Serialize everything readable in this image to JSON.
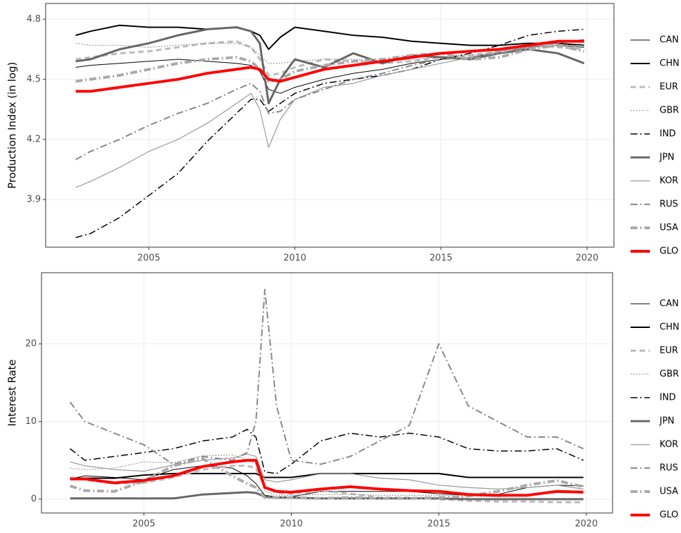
{
  "chart_data": [
    {
      "type": "line",
      "ylabel": "Production Index (in log)",
      "grid": true,
      "legend": "right",
      "x": [
        2002.5,
        2003,
        2004,
        2005,
        2006,
        2007,
        2008,
        2008.5,
        2008.8,
        2009.1,
        2009.5,
        2010,
        2011,
        2012,
        2013,
        2014,
        2015,
        2016,
        2017,
        2018,
        2019,
        2019.9
      ],
      "xlim": [
        2001.47,
        2020.92
      ],
      "xticks": [
        2005,
        2010,
        2015,
        2020
      ],
      "ylim": [
        3.662,
        4.879
      ],
      "yticks": [
        3.9,
        4.2,
        4.5,
        4.8
      ],
      "series": [
        {
          "name": "CAN",
          "color": "#000000",
          "linestyle": "solid",
          "linewidth": 1,
          "values": [
            4.56,
            4.57,
            4.58,
            4.59,
            4.6,
            4.59,
            4.58,
            4.57,
            4.54,
            4.45,
            4.43,
            4.46,
            4.5,
            4.53,
            4.55,
            4.58,
            4.6,
            4.61,
            4.63,
            4.66,
            4.67,
            4.66
          ]
        },
        {
          "name": "CHN",
          "color": "#000000",
          "linestyle": "solid",
          "linewidth": 2,
          "values": [
            4.72,
            4.74,
            4.77,
            4.76,
            4.76,
            4.75,
            4.76,
            4.74,
            4.72,
            4.65,
            4.71,
            4.76,
            4.74,
            4.72,
            4.71,
            4.69,
            4.68,
            4.67,
            4.67,
            4.68,
            4.68,
            4.67
          ]
        },
        {
          "name": "EUR",
          "color": "#bbbbbb",
          "linestyle": "dashed",
          "linewidth": 3,
          "values": [
            4.6,
            4.61,
            4.63,
            4.64,
            4.66,
            4.68,
            4.69,
            4.66,
            4.6,
            4.52,
            4.53,
            4.56,
            4.6,
            4.59,
            4.58,
            4.59,
            4.61,
            4.62,
            4.64,
            4.67,
            4.66,
            4.65
          ]
        },
        {
          "name": "GBR",
          "color": "#888888",
          "linestyle": "dotted",
          "linewidth": 1,
          "values": [
            4.68,
            4.67,
            4.67,
            4.66,
            4.67,
            4.68,
            4.68,
            4.66,
            4.62,
            4.58,
            4.58,
            4.59,
            4.6,
            4.6,
            4.59,
            4.6,
            4.61,
            4.62,
            4.63,
            4.66,
            4.67,
            4.67
          ]
        },
        {
          "name": "IND",
          "color": "#000000",
          "linestyle": "dotdash",
          "linewidth": 1.5,
          "values": [
            3.71,
            3.73,
            3.81,
            3.92,
            4.03,
            4.19,
            4.33,
            4.4,
            4.4,
            4.34,
            4.38,
            4.43,
            4.48,
            4.5,
            4.52,
            4.55,
            4.6,
            4.63,
            4.67,
            4.72,
            4.74,
            4.75
          ]
        },
        {
          "name": "JPN",
          "color": "#666666",
          "linestyle": "solid",
          "linewidth": 3,
          "values": [
            4.59,
            4.6,
            4.65,
            4.68,
            4.72,
            4.75,
            4.76,
            4.74,
            4.68,
            4.38,
            4.5,
            4.6,
            4.56,
            4.63,
            4.58,
            4.62,
            4.61,
            4.6,
            4.63,
            4.65,
            4.63,
            4.58
          ]
        },
        {
          "name": "KOR",
          "color": "#999999",
          "linestyle": "solid",
          "linewidth": 1.2,
          "values": [
            3.96,
            3.99,
            4.06,
            4.14,
            4.2,
            4.28,
            4.38,
            4.43,
            4.35,
            4.16,
            4.3,
            4.4,
            4.46,
            4.48,
            4.52,
            4.55,
            4.58,
            4.61,
            4.64,
            4.66,
            4.68,
            4.7
          ]
        },
        {
          "name": "RUS",
          "color": "#888888",
          "linestyle": "dotdash",
          "linewidth": 2,
          "values": [
            4.1,
            4.14,
            4.2,
            4.27,
            4.33,
            4.38,
            4.45,
            4.48,
            4.44,
            4.33,
            4.34,
            4.4,
            4.45,
            4.5,
            4.53,
            4.57,
            4.6,
            4.61,
            4.63,
            4.66,
            4.67,
            4.66
          ]
        },
        {
          "name": "USA",
          "color": "#aaaaaa",
          "linestyle": "dotdash",
          "linewidth": 4,
          "values": [
            4.49,
            4.5,
            4.52,
            4.55,
            4.58,
            4.6,
            4.61,
            4.59,
            4.55,
            4.49,
            4.5,
            4.54,
            4.57,
            4.59,
            4.6,
            4.62,
            4.63,
            4.6,
            4.61,
            4.65,
            4.67,
            4.64
          ]
        },
        {
          "name": "GLO",
          "color": "#ff0000",
          "linestyle": "solid",
          "linewidth": 4,
          "values": [
            4.44,
            4.44,
            4.46,
            4.48,
            4.5,
            4.53,
            4.55,
            4.56,
            4.55,
            4.5,
            4.49,
            4.51,
            4.55,
            4.57,
            4.59,
            4.61,
            4.63,
            4.64,
            4.65,
            4.67,
            4.69,
            4.69
          ]
        }
      ]
    },
    {
      "type": "line",
      "ylabel": "Interest Rate",
      "grid": true,
      "legend": "right",
      "x": [
        2002.5,
        2003,
        2004,
        2005,
        2006,
        2007,
        2008,
        2008.5,
        2008.8,
        2009.1,
        2009.5,
        2010,
        2011,
        2012,
        2013,
        2014,
        2015,
        2016,
        2017,
        2018,
        2019,
        2019.9
      ],
      "xlim": [
        2001.53,
        2020.89
      ],
      "xticks": [
        2005,
        2010,
        2015,
        2020
      ],
      "ylim": [
        -1.78,
        29.16
      ],
      "yticks": [
        0,
        10,
        20
      ],
      "series": [
        {
          "name": "CAN",
          "color": "#000000",
          "linestyle": "solid",
          "linewidth": 1,
          "values": [
            2.6,
            3.0,
            2.8,
            2.5,
            3.8,
            4.3,
            4.0,
            3.0,
            2.0,
            0.5,
            0.3,
            0.3,
            1.0,
            1.0,
            1.0,
            1.0,
            0.7,
            0.5,
            0.6,
            1.5,
            1.8,
            1.7
          ]
        },
        {
          "name": "CHN",
          "color": "#000000",
          "linestyle": "solid",
          "linewidth": 2,
          "values": [
            2.7,
            2.7,
            2.7,
            3.1,
            3.3,
            3.3,
            3.3,
            3.3,
            3.3,
            2.8,
            2.8,
            2.8,
            3.3,
            3.3,
            3.3,
            3.3,
            3.3,
            2.8,
            2.8,
            2.8,
            2.8,
            2.8
          ]
        },
        {
          "name": "EUR",
          "color": "#bbbbbb",
          "linestyle": "dashed",
          "linewidth": 3,
          "values": [
            2.8,
            2.5,
            2.0,
            2.1,
            2.8,
            3.8,
            4.3,
            4.3,
            4.0,
            1.5,
            0.8,
            0.7,
            1.1,
            0.7,
            0.2,
            0.2,
            0.0,
            -0.2,
            -0.3,
            -0.3,
            -0.4,
            -0.4
          ]
        },
        {
          "name": "GBR",
          "color": "#888888",
          "linestyle": "dotted",
          "linewidth": 1,
          "values": [
            4.0,
            3.8,
            4.0,
            4.8,
            4.7,
            5.6,
            5.7,
            5.1,
            4.5,
            1.0,
            0.5,
            0.5,
            0.6,
            0.6,
            0.5,
            0.5,
            0.5,
            0.4,
            0.3,
            0.6,
            0.8,
            0.8
          ]
        },
        {
          "name": "IND",
          "color": "#000000",
          "linestyle": "dotdash",
          "linewidth": 1.5,
          "values": [
            6.5,
            5.0,
            5.5,
            6.0,
            6.5,
            7.5,
            8.0,
            9.0,
            8.0,
            3.5,
            3.3,
            4.5,
            7.5,
            8.5,
            8.0,
            8.5,
            8.0,
            6.5,
            6.2,
            6.2,
            6.5,
            5.0
          ]
        },
        {
          "name": "JPN",
          "color": "#666666",
          "linestyle": "solid",
          "linewidth": 3,
          "values": [
            0.1,
            0.1,
            0.1,
            0.1,
            0.1,
            0.6,
            0.8,
            0.9,
            0.8,
            0.3,
            0.2,
            0.2,
            0.1,
            0.1,
            0.1,
            0.1,
            0.1,
            0.0,
            0.0,
            0.0,
            0.0,
            0.0
          ]
        },
        {
          "name": "KOR",
          "color": "#999999",
          "linestyle": "solid",
          "linewidth": 1.2,
          "values": [
            4.8,
            4.3,
            3.8,
            3.6,
            4.4,
            5.0,
            5.3,
            5.8,
            5.5,
            2.5,
            2.2,
            2.5,
            3.3,
            3.3,
            2.7,
            2.5,
            1.8,
            1.5,
            1.3,
            1.5,
            1.8,
            1.3
          ]
        },
        {
          "name": "RUS",
          "color": "#888888",
          "linestyle": "dotdash",
          "linewidth": 2,
          "values": [
            12.5,
            10.0,
            8.5,
            7.0,
            4.5,
            5.5,
            5.0,
            6.0,
            10.0,
            27.0,
            12.0,
            5.0,
            4.5,
            5.5,
            7.5,
            9.5,
            20.0,
            12.0,
            10.0,
            8.0,
            8.0,
            6.5
          ]
        },
        {
          "name": "USA",
          "color": "#aaaaaa",
          "linestyle": "dotdash",
          "linewidth": 4,
          "values": [
            1.7,
            1.1,
            1.0,
            2.3,
            4.3,
            5.2,
            3.0,
            2.0,
            1.5,
            0.2,
            0.2,
            0.2,
            0.1,
            0.2,
            0.1,
            0.1,
            0.2,
            0.4,
            1.0,
            1.8,
            2.4,
            1.6
          ]
        },
        {
          "name": "GLO",
          "color": "#ff0000",
          "linestyle": "solid",
          "linewidth": 4,
          "values": [
            2.6,
            2.6,
            2.1,
            2.4,
            3.0,
            4.2,
            4.8,
            5.0,
            5.0,
            1.5,
            1.0,
            0.9,
            1.3,
            1.6,
            1.3,
            1.1,
            1.0,
            0.6,
            0.5,
            0.5,
            1.0,
            0.9
          ]
        }
      ]
    }
  ]
}
